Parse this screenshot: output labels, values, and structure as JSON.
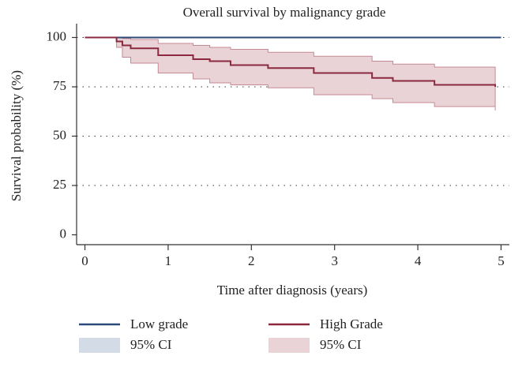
{
  "chart_data": {
    "type": "km",
    "title": "Overall survival by malignancy grade",
    "x_label": "Time after diagnosis (years)",
    "y_label": "Survival probability (%)",
    "xlim": [
      -0.1,
      5.1
    ],
    "ylim": [
      -5,
      107
    ],
    "xticks": [
      0,
      1,
      2,
      3,
      4,
      5
    ],
    "yticks": [
      0,
      25,
      50,
      75,
      100
    ],
    "grid": true,
    "series": [
      {
        "name": "Low grade",
        "color": "#2e4a7a",
        "x": [
          0,
          5
        ],
        "values": [
          100,
          100
        ],
        "ci": {
          "name": "95% CI",
          "color": "#d3dbe6",
          "lower": [
            100,
            100
          ],
          "upper": [
            100,
            100
          ]
        }
      },
      {
        "name": "High Grade",
        "color": "#8b2a3e",
        "x": [
          0,
          0.38,
          0.45,
          0.55,
          0.88,
          1.3,
          1.5,
          1.75,
          2.2,
          2.75,
          3.45,
          3.7,
          4.2,
          4.93
        ],
        "values": [
          100,
          98,
          96,
          94.5,
          91,
          89,
          88,
          86,
          84.5,
          82,
          79.5,
          78,
          76,
          75
        ],
        "ci": {
          "name": "95% CI",
          "color": "#ead3d6",
          "lower": [
            100,
            95,
            90,
            87,
            82,
            79,
            77,
            76,
            74.5,
            71,
            69,
            67,
            65,
            63
          ],
          "upper": [
            100,
            100,
            99.5,
            99,
            97,
            96,
            95,
            94,
            92.5,
            90.5,
            88,
            86.5,
            85,
            84
          ]
        }
      }
    ]
  }
}
